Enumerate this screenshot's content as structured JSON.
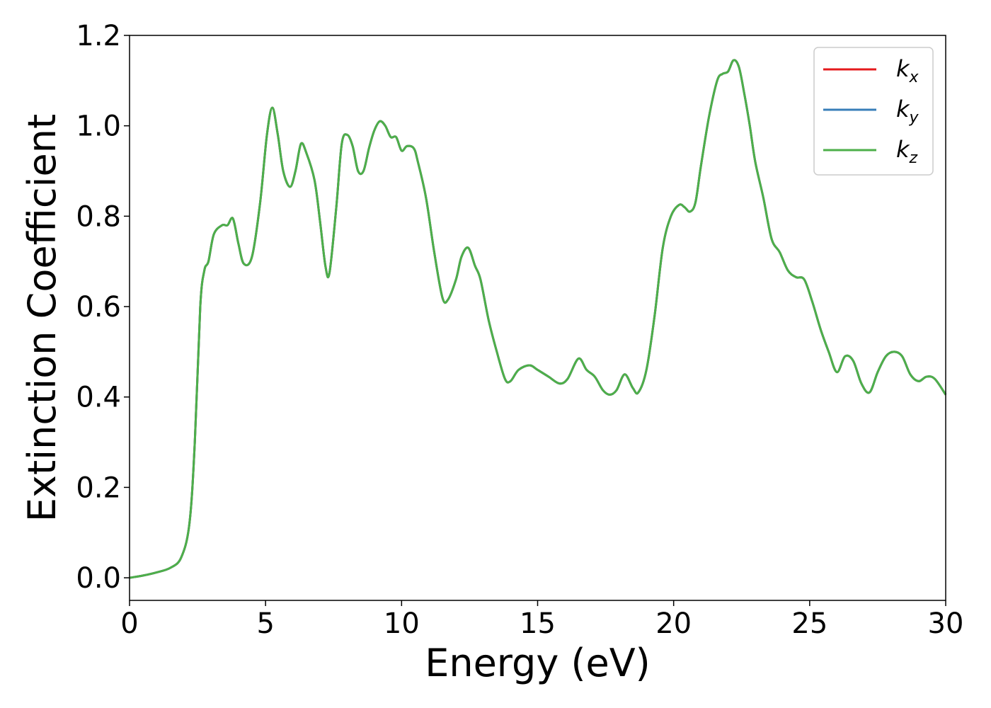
{
  "chart_data": {
    "type": "line",
    "title": "",
    "xlabel": "Energy (eV)",
    "ylabel": "Extinction Coefficient",
    "xlim": [
      0,
      30
    ],
    "ylim": [
      -0.05,
      1.2
    ],
    "xticks": [
      0,
      5,
      10,
      15,
      20,
      25,
      30
    ],
    "xtick_labels": [
      "0",
      "5",
      "10",
      "15",
      "20",
      "25",
      "30"
    ],
    "yticks": [
      0.0,
      0.2,
      0.4,
      0.6,
      0.8,
      1.0,
      1.2
    ],
    "ytick_labels": [
      "0.0",
      "0.2",
      "0.4",
      "0.6",
      "0.8",
      "1.0",
      "1.2"
    ],
    "grid": false,
    "legend_position": "top-right",
    "x": [
      0.0,
      0.5,
      1.0,
      1.5,
      1.9,
      2.2,
      2.4,
      2.6,
      2.75,
      2.9,
      3.1,
      3.4,
      3.6,
      3.8,
      4.0,
      4.2,
      4.5,
      4.8,
      5.05,
      5.25,
      5.45,
      5.65,
      5.9,
      6.1,
      6.3,
      6.5,
      6.8,
      7.0,
      7.2,
      7.35,
      7.6,
      7.8,
      8.0,
      8.2,
      8.4,
      8.6,
      8.8,
      9.0,
      9.2,
      9.4,
      9.6,
      9.8,
      10.0,
      10.2,
      10.45,
      10.6,
      10.9,
      11.2,
      11.5,
      11.7,
      12.0,
      12.2,
      12.45,
      12.7,
      12.9,
      13.2,
      13.5,
      13.8,
      14.0,
      14.3,
      14.7,
      15.0,
      15.4,
      15.8,
      16.1,
      16.5,
      16.8,
      17.1,
      17.4,
      17.65,
      17.9,
      18.2,
      18.5,
      18.7,
      19.0,
      19.3,
      19.6,
      19.9,
      20.2,
      20.4,
      20.6,
      20.8,
      21.0,
      21.3,
      21.6,
      21.8,
      22.0,
      22.2,
      22.4,
      22.6,
      22.8,
      23.0,
      23.3,
      23.6,
      23.9,
      24.2,
      24.5,
      24.8,
      25.1,
      25.4,
      25.7,
      26.0,
      26.3,
      26.6,
      26.9,
      27.2,
      27.5,
      27.8,
      28.1,
      28.4,
      28.7,
      29.0,
      29.3,
      29.6,
      30.0
    ],
    "series": [
      {
        "name": "k_x",
        "color": "#e41a1c",
        "y": [
          0.0,
          0.005,
          0.012,
          0.022,
          0.045,
          0.12,
          0.3,
          0.6,
          0.68,
          0.7,
          0.76,
          0.78,
          0.78,
          0.795,
          0.74,
          0.695,
          0.71,
          0.83,
          0.98,
          1.04,
          0.98,
          0.9,
          0.865,
          0.9,
          0.96,
          0.94,
          0.88,
          0.79,
          0.69,
          0.675,
          0.82,
          0.96,
          0.98,
          0.955,
          0.9,
          0.9,
          0.95,
          0.99,
          1.01,
          1.0,
          0.975,
          0.975,
          0.945,
          0.955,
          0.95,
          0.92,
          0.84,
          0.72,
          0.62,
          0.615,
          0.66,
          0.71,
          0.73,
          0.69,
          0.66,
          0.57,
          0.5,
          0.44,
          0.435,
          0.46,
          0.47,
          0.46,
          0.445,
          0.43,
          0.44,
          0.485,
          0.46,
          0.445,
          0.415,
          0.405,
          0.415,
          0.45,
          0.42,
          0.41,
          0.46,
          0.58,
          0.73,
          0.8,
          0.825,
          0.82,
          0.81,
          0.83,
          0.91,
          1.02,
          1.1,
          1.115,
          1.12,
          1.145,
          1.13,
          1.07,
          1.0,
          0.92,
          0.84,
          0.75,
          0.72,
          0.68,
          0.665,
          0.66,
          0.61,
          0.55,
          0.5,
          0.455,
          0.49,
          0.48,
          0.43,
          0.41,
          0.455,
          0.49,
          0.5,
          0.49,
          0.45,
          0.435,
          0.445,
          0.44,
          0.405
        ]
      },
      {
        "name": "k_y",
        "color": "#377eb8",
        "y": [
          0.0,
          0.005,
          0.012,
          0.022,
          0.045,
          0.12,
          0.3,
          0.6,
          0.68,
          0.7,
          0.76,
          0.78,
          0.78,
          0.795,
          0.74,
          0.695,
          0.71,
          0.83,
          0.98,
          1.04,
          0.98,
          0.9,
          0.865,
          0.9,
          0.96,
          0.94,
          0.88,
          0.79,
          0.69,
          0.675,
          0.82,
          0.96,
          0.98,
          0.955,
          0.9,
          0.9,
          0.95,
          0.99,
          1.01,
          1.0,
          0.975,
          0.975,
          0.945,
          0.955,
          0.95,
          0.92,
          0.84,
          0.72,
          0.62,
          0.615,
          0.66,
          0.71,
          0.73,
          0.69,
          0.66,
          0.57,
          0.5,
          0.44,
          0.435,
          0.46,
          0.47,
          0.46,
          0.445,
          0.43,
          0.44,
          0.485,
          0.46,
          0.445,
          0.415,
          0.405,
          0.415,
          0.45,
          0.42,
          0.41,
          0.46,
          0.58,
          0.73,
          0.8,
          0.825,
          0.82,
          0.81,
          0.83,
          0.91,
          1.02,
          1.1,
          1.115,
          1.12,
          1.145,
          1.13,
          1.07,
          1.0,
          0.92,
          0.84,
          0.75,
          0.72,
          0.68,
          0.665,
          0.66,
          0.61,
          0.55,
          0.5,
          0.455,
          0.49,
          0.48,
          0.43,
          0.41,
          0.455,
          0.49,
          0.5,
          0.49,
          0.45,
          0.435,
          0.445,
          0.44,
          0.405
        ]
      },
      {
        "name": "k_z",
        "color": "#4daf4a",
        "y": [
          0.0,
          0.005,
          0.012,
          0.022,
          0.045,
          0.12,
          0.3,
          0.6,
          0.68,
          0.7,
          0.76,
          0.78,
          0.78,
          0.795,
          0.74,
          0.695,
          0.71,
          0.83,
          0.98,
          1.04,
          0.98,
          0.9,
          0.865,
          0.9,
          0.96,
          0.94,
          0.88,
          0.79,
          0.69,
          0.675,
          0.82,
          0.96,
          0.98,
          0.955,
          0.9,
          0.9,
          0.95,
          0.99,
          1.01,
          1.0,
          0.975,
          0.975,
          0.945,
          0.955,
          0.95,
          0.92,
          0.84,
          0.72,
          0.62,
          0.615,
          0.66,
          0.71,
          0.73,
          0.69,
          0.66,
          0.57,
          0.5,
          0.44,
          0.435,
          0.46,
          0.47,
          0.46,
          0.445,
          0.43,
          0.44,
          0.485,
          0.46,
          0.445,
          0.415,
          0.405,
          0.415,
          0.45,
          0.42,
          0.41,
          0.46,
          0.58,
          0.73,
          0.8,
          0.825,
          0.82,
          0.81,
          0.83,
          0.91,
          1.02,
          1.1,
          1.115,
          1.12,
          1.145,
          1.13,
          1.07,
          1.0,
          0.92,
          0.84,
          0.75,
          0.72,
          0.68,
          0.665,
          0.66,
          0.61,
          0.55,
          0.5,
          0.455,
          0.49,
          0.48,
          0.43,
          0.41,
          0.455,
          0.49,
          0.5,
          0.49,
          0.45,
          0.435,
          0.445,
          0.44,
          0.405
        ]
      }
    ],
    "legend": [
      {
        "base": "k",
        "sub": "x",
        "color": "#e41a1c"
      },
      {
        "base": "k",
        "sub": "y",
        "color": "#377eb8"
      },
      {
        "base": "k",
        "sub": "z",
        "color": "#4daf4a"
      }
    ]
  }
}
